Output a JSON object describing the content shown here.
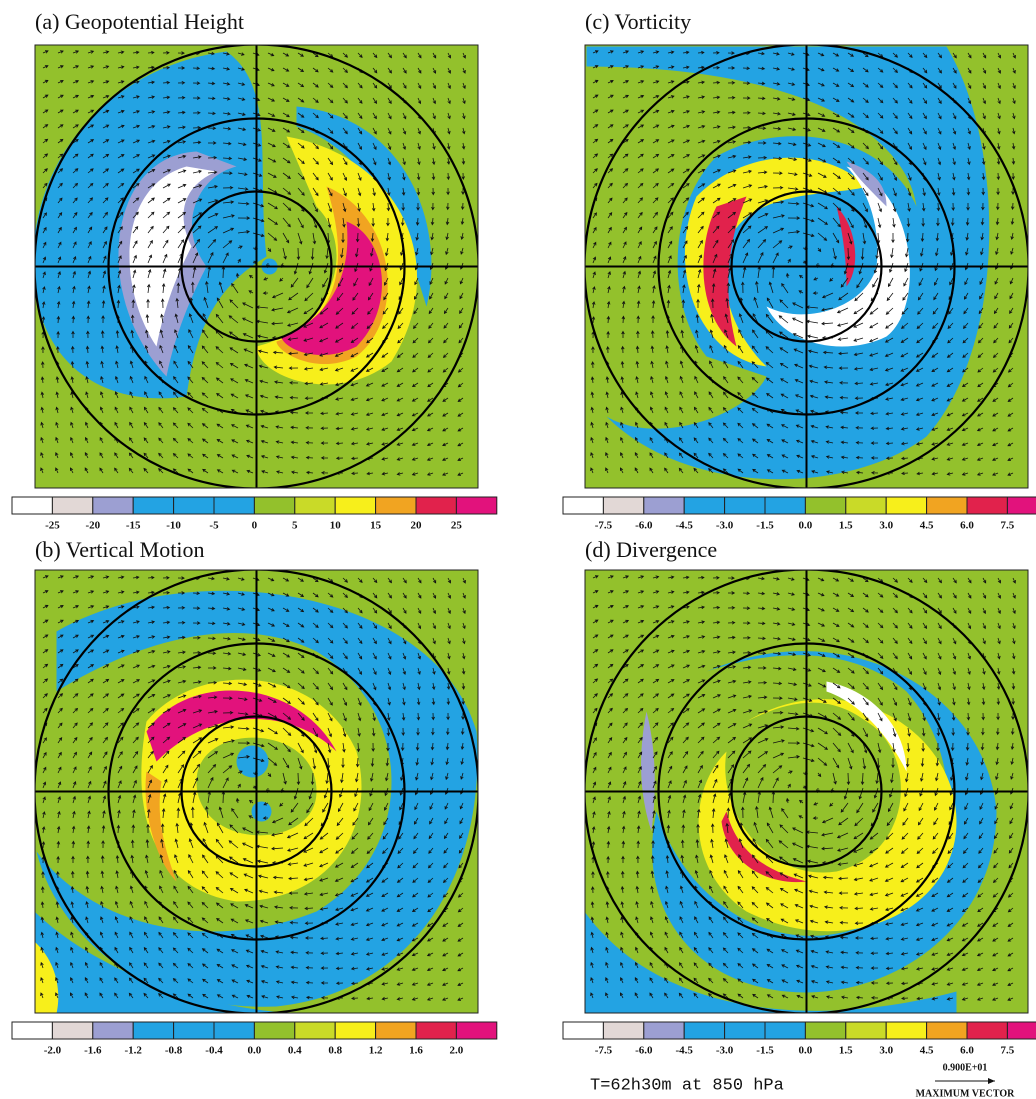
{
  "colors": [
    "#ffffff",
    "#e2d8d6",
    "#9c9fd2",
    "#23a3e3",
    "#23a3e3",
    "#23a3e3",
    "#93c12c",
    "#c9da28",
    "#f7ef1b",
    "#f1a421",
    "#e1224c",
    "#e2127c"
  ],
  "panels": [
    {
      "title": "(a) Geopotential Height",
      "colorbar": {
        "labels": [
          "-25",
          "-20",
          "-15",
          "-10",
          "-5",
          "0",
          "5",
          "10",
          "15",
          "20",
          "25"
        ]
      }
    },
    {
      "title": "(c) Vorticity",
      "colorbar": {
        "labels": [
          "-7.5",
          "-6.0",
          "-4.5",
          "-3.0",
          "-1.5",
          "0.0",
          "1.5",
          "3.0",
          "4.5",
          "6.0",
          "7.5"
        ]
      }
    },
    {
      "title": "(b) Vertical Motion",
      "colorbar": {
        "labels": [
          "-2.0",
          "-1.6",
          "-1.2",
          "-0.8",
          "-0.4",
          "0.0",
          "0.4",
          "0.8",
          "1.2",
          "1.6",
          "2.0"
        ]
      }
    },
    {
      "title": "(d) Divergence",
      "colorbar": {
        "labels": [
          "-7.5",
          "-6.0",
          "-4.5",
          "-3.0",
          "-1.5",
          "0.0",
          "1.5",
          "3.0",
          "4.5",
          "6.0",
          "7.5"
        ]
      }
    }
  ],
  "footer": {
    "time": "T=62h30m at 850 hPa",
    "max_vector": "0.900E+01",
    "max_vector_label": "MAXIMUM VECTOR"
  }
}
